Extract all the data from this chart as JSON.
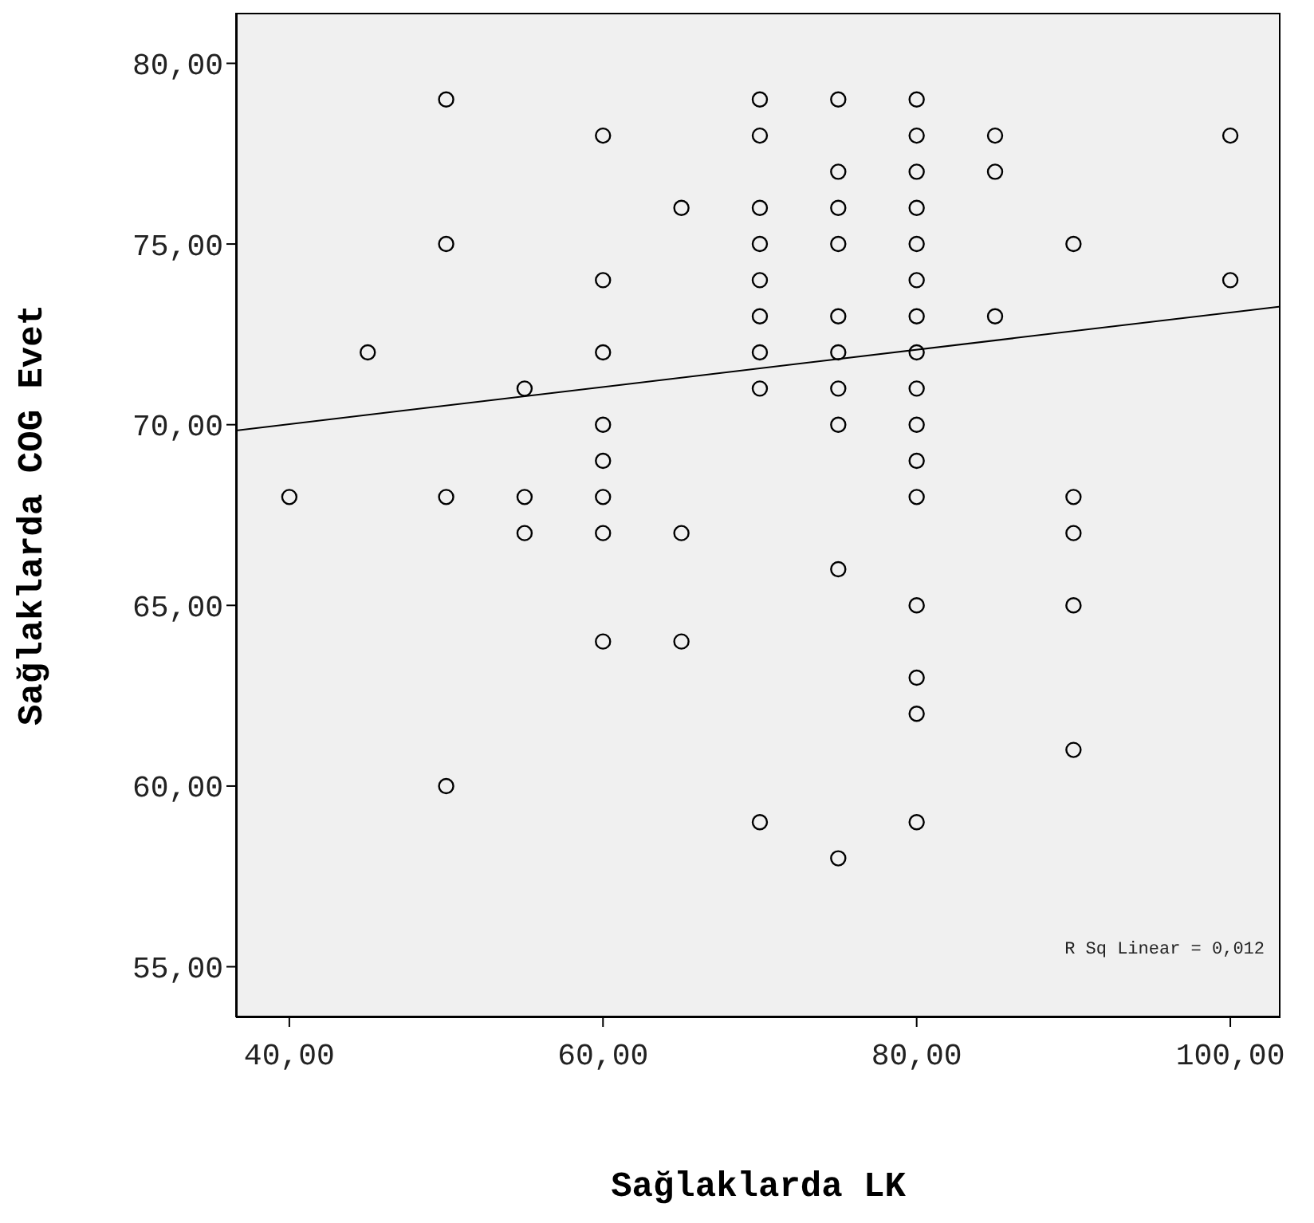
{
  "chart_data": {
    "type": "scatter",
    "xlabel": "Sağlaklarda LK",
    "ylabel": "Sağlaklarda COG Evet",
    "xlim": [
      36.6,
      103.2
    ],
    "ylim": [
      53.6,
      81.4
    ],
    "xticks": [
      {
        "value": 40,
        "label": "40,00"
      },
      {
        "value": 60,
        "label": "60,00"
      },
      {
        "value": 80,
        "label": "80,00"
      },
      {
        "value": 100,
        "label": "100,00"
      }
    ],
    "yticks": [
      {
        "value": 55,
        "label": "55,00"
      },
      {
        "value": 60,
        "label": "60,00"
      },
      {
        "value": 65,
        "label": "65,00"
      },
      {
        "value": 70,
        "label": "70,00"
      },
      {
        "value": 75,
        "label": "75,00"
      },
      {
        "value": 80,
        "label": "80,00"
      }
    ],
    "marker": "circle",
    "annotations": [
      "R Sq Linear = 0,012"
    ],
    "series": [
      {
        "color": "#000000",
        "x": [
          40,
          45,
          50,
          50,
          50,
          50,
          55,
          55,
          55,
          60,
          60,
          60,
          60,
          60,
          60,
          60,
          60,
          65,
          65,
          65,
          70,
          70,
          70,
          70,
          70,
          70,
          70,
          70,
          70,
          75,
          75,
          75,
          75,
          75,
          75,
          75,
          75,
          75,
          75,
          80,
          80,
          80,
          80,
          80,
          80,
          80,
          80,
          80,
          80,
          80,
          80,
          80,
          80,
          80,
          80,
          85,
          85,
          85,
          90,
          90,
          90,
          90,
          90,
          100,
          100
        ],
        "values": [
          68,
          72,
          79,
          75,
          68,
          60,
          71,
          68,
          67,
          78,
          74,
          72,
          70,
          69,
          68,
          67,
          64,
          76,
          67,
          64,
          79,
          78,
          76,
          75,
          74,
          73,
          72,
          71,
          59,
          79,
          77,
          76,
          75,
          73,
          72,
          71,
          70,
          66,
          58,
          79,
          78,
          77,
          76,
          75,
          74,
          73,
          72,
          71,
          70,
          69,
          68,
          65,
          63,
          62,
          59,
          78,
          77,
          73,
          75,
          68,
          67,
          65,
          61,
          78,
          74
        ]
      },
      {
        "type": "line",
        "marker": "none",
        "color": "#000000",
        "x": [
          36.6,
          103.2
        ],
        "values": [
          69.84,
          73.27
        ]
      }
    ]
  }
}
